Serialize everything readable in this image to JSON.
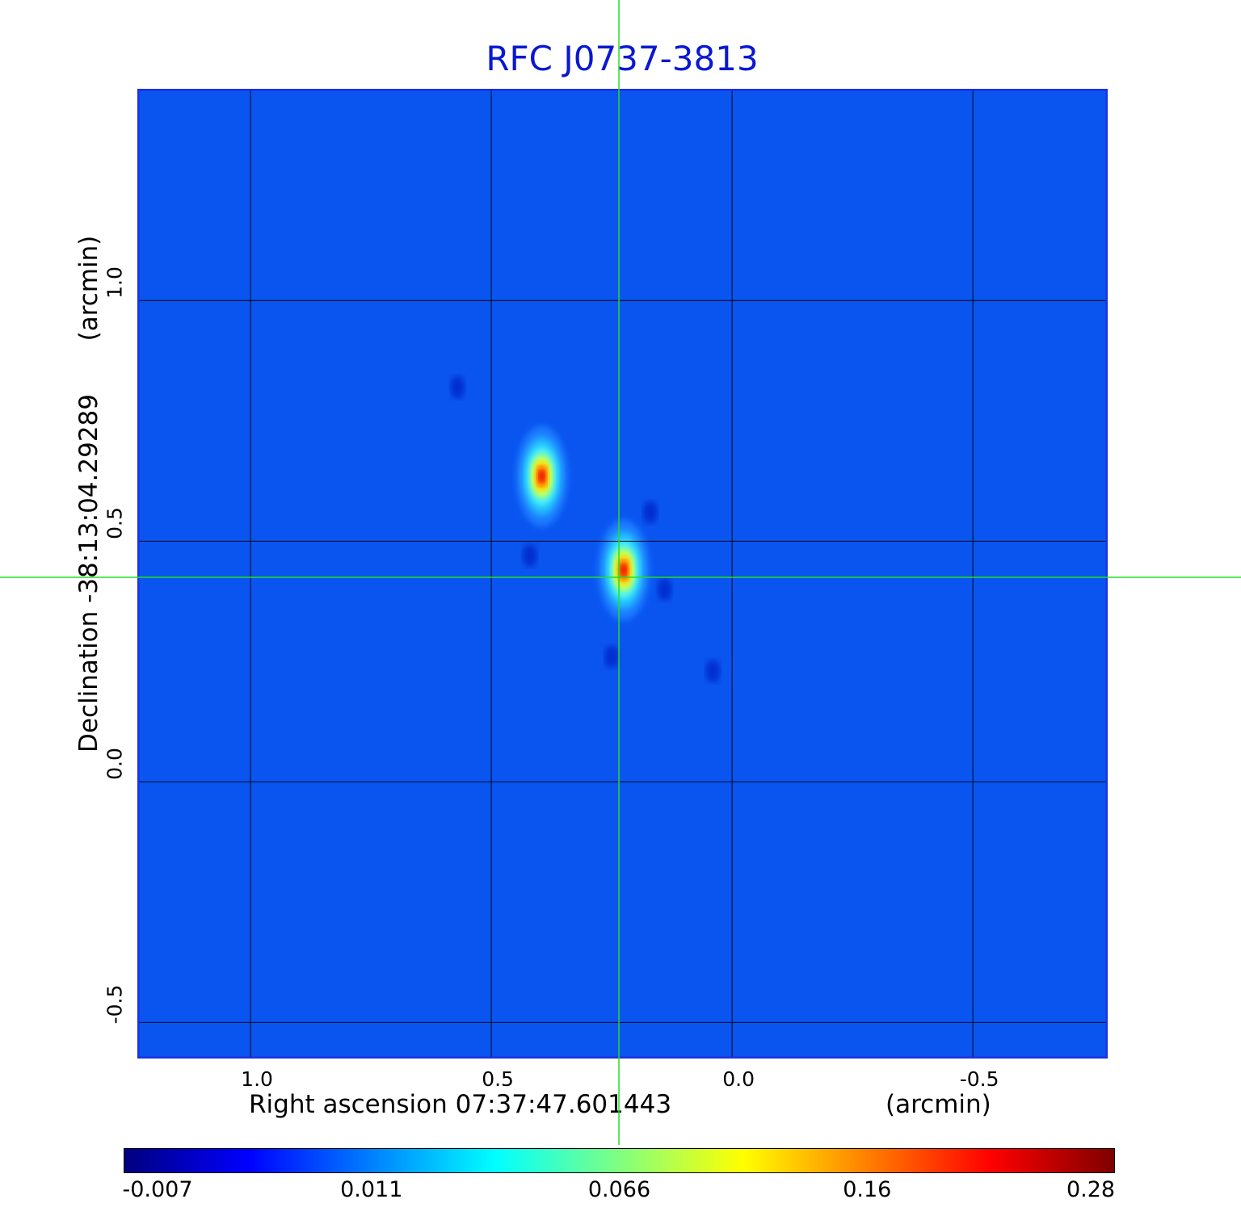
{
  "chart_data": {
    "type": "heatmap",
    "title": "RFC J0737-3813",
    "xlabel": "Right ascension  07:37:47.601443",
    "x_unit": "(arcmin)",
    "ylabel": "Declination  -38:13:04.29289",
    "y_unit": "(arcmin)",
    "xlim": [
      1.235,
      -0.78
    ],
    "ylim": [
      -0.575,
      1.44
    ],
    "x_reversed": true,
    "x_ticks": [
      1.0,
      0.5,
      0.0,
      -0.5
    ],
    "x_tick_labels": [
      "1.0",
      "0.5",
      "0.0",
      "-0.5"
    ],
    "y_ticks": [
      -0.5,
      0.0,
      0.5,
      1.0
    ],
    "y_tick_labels": [
      "-0.5",
      "0.0",
      "0.5",
      "1.0"
    ],
    "grid": true,
    "colormap": "jet",
    "colorbar": {
      "position": "bottom",
      "tick_labels": [
        "-0.007",
        "0.011",
        "0.066",
        "0.16",
        "0.28"
      ],
      "min": -0.007,
      "max": 0.28
    },
    "crosshair": {
      "x": 0.235,
      "y": 0.425
    },
    "sources": [
      {
        "x": 0.395,
        "y": 0.635,
        "peak": 0.28,
        "sigma_x": 0.028,
        "sigma_y": 0.055
      },
      {
        "x": 0.225,
        "y": 0.44,
        "peak": 0.28,
        "sigma_x": 0.028,
        "sigma_y": 0.055
      }
    ],
    "negative_spots": [
      {
        "x": 0.57,
        "y": 0.82
      },
      {
        "x": 0.42,
        "y": 0.47
      },
      {
        "x": 0.17,
        "y": 0.56
      },
      {
        "x": 0.14,
        "y": 0.4
      },
      {
        "x": 0.25,
        "y": 0.26
      },
      {
        "x": 0.04,
        "y": 0.23
      }
    ]
  }
}
